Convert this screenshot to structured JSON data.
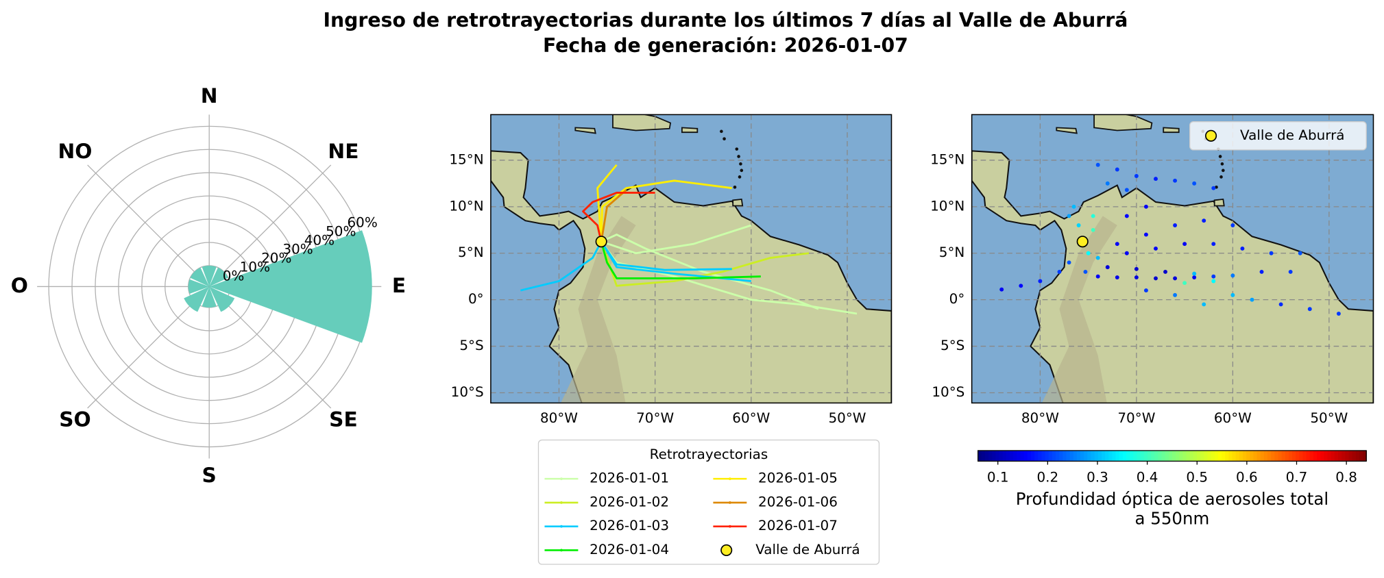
{
  "title": [
    "Ingreso de retrotrayectorias durante los últimos 7 días al Valle de Aburrá",
    "Fecha de generación: 2026-01-07"
  ],
  "chart_data": [
    {
      "type": "rose",
      "categories": [
        "N",
        "NE",
        "E",
        "SE",
        "S",
        "SO",
        "O",
        "NO"
      ],
      "values": [
        0,
        0,
        61,
        3,
        0,
        3,
        0,
        0
      ],
      "color": "#66cdbb",
      "rlim": [
        -9,
        65
      ],
      "rticks": [
        {
          "value": 0,
          "label": "0%"
        },
        {
          "value": 10,
          "label": "10%"
        },
        {
          "value": 20,
          "label": "20%"
        },
        {
          "value": 30,
          "label": "30%"
        },
        {
          "value": 40,
          "label": "40%"
        },
        {
          "value": 50,
          "label": "50%"
        },
        {
          "value": 60,
          "label": "60%"
        }
      ]
    },
    {
      "type": "trajectory_map",
      "xlim": [
        -87.1,
        -45.4
      ],
      "ylim": [
        -11.1,
        19.9
      ],
      "grid": true,
      "xticks": [
        {
          "value": -80,
          "label": "80°W"
        },
        {
          "value": -70,
          "label": "70°W"
        },
        {
          "value": -60,
          "label": "60°W"
        },
        {
          "value": -50,
          "label": "50°W"
        }
      ],
      "yticks": [
        {
          "value": 15,
          "label": "15°N"
        },
        {
          "value": 10,
          "label": "10°N"
        },
        {
          "value": 5,
          "label": "5°N"
        },
        {
          "value": 0,
          "label": "0°"
        },
        {
          "value": -5,
          "label": "5°S"
        },
        {
          "value": -10,
          "label": "10°S"
        }
      ],
      "legend_title": "Retrotrayectorias",
      "series": [
        {
          "name": "2026-01-01",
          "color": "#ccffaa",
          "tracks": [
            {
              "x": [
                -49,
                -55,
                -60,
                -68,
                -74,
                -75.6
              ],
              "y": [
                -1.5,
                -0.5,
                0,
                2.5,
                4,
                6.25
              ]
            },
            {
              "x": [
                -60,
                -66,
                -72,
                -75.6
              ],
              "y": [
                8,
                6,
                5,
                6.25
              ]
            },
            {
              "x": [
                -53,
                -58,
                -65,
                -71,
                -74,
                -75.6
              ],
              "y": [
                -1,
                1,
                3,
                5.5,
                7,
                6.25
              ]
            }
          ]
        },
        {
          "name": "2026-01-02",
          "color": "#ccee22",
          "tracks": [
            {
              "x": [
                -54,
                -58,
                -63,
                -68,
                -74,
                -75.6
              ],
              "y": [
                5,
                4.5,
                3,
                2,
                1.5,
                6.25
              ]
            }
          ]
        },
        {
          "name": "2026-01-03",
          "color": "#00ccff",
          "tracks": [
            {
              "x": [
                -60,
                -68,
                -74,
                -75.6
              ],
              "y": [
                2,
                2.8,
                3.5,
                6.25
              ]
            },
            {
              "x": [
                -84,
                -80,
                -76.5,
                -75.6
              ],
              "y": [
                1,
                2,
                4.5,
                6.25
              ]
            },
            {
              "x": [
                -62,
                -69,
                -74,
                -75.6
              ],
              "y": [
                3.3,
                3.2,
                3.8,
                6.25
              ]
            }
          ]
        },
        {
          "name": "2026-01-04",
          "color": "#00ee00",
          "tracks": [
            {
              "x": [
                -59,
                -66,
                -74,
                -75,
                -75.6
              ],
              "y": [
                2.5,
                2.3,
                2.3,
                4,
                6.25
              ]
            }
          ]
        },
        {
          "name": "2026-01-05",
          "color": "#ffee00",
          "tracks": [
            {
              "x": [
                -62,
                -68,
                -73,
                -75.5,
                -75.6
              ],
              "y": [
                12,
                12.8,
                12,
                10,
                6.25
              ]
            },
            {
              "x": [
                -74,
                -76,
                -75.6
              ],
              "y": [
                14.5,
                12,
                6.25
              ]
            }
          ]
        },
        {
          "name": "2026-01-06",
          "color": "#dd8800",
          "tracks": [
            {
              "x": [
                -73,
                -75,
                -75.6
              ],
              "y": [
                11.8,
                10,
                6.25
              ]
            }
          ]
        },
        {
          "name": "2026-01-07",
          "color": "#ff2200",
          "tracks": [
            {
              "x": [
                -70,
                -74,
                -76.5,
                -77.5,
                -76,
                -75.6
              ],
              "y": [
                11.5,
                11.5,
                10.5,
                9.5,
                8,
                6.25
              ]
            }
          ]
        }
      ],
      "marker": {
        "name": "Valle de Aburrá",
        "x": -75.6,
        "y": 6.25,
        "color": "#ffee22"
      }
    },
    {
      "type": "scatter_map",
      "xlim": [
        -87.1,
        -45.4
      ],
      "ylim": [
        -11.1,
        19.9
      ],
      "grid": true,
      "legend": "upper right",
      "xticks": [
        {
          "value": -80,
          "label": "80°W"
        },
        {
          "value": -70,
          "label": "70°W"
        },
        {
          "value": -60,
          "label": "60°W"
        },
        {
          "value": -50,
          "label": "50°W"
        }
      ],
      "yticks": [
        {
          "value": 15,
          "label": "15°N"
        },
        {
          "value": 10,
          "label": "10°N"
        },
        {
          "value": 5,
          "label": "5°N"
        },
        {
          "value": 0,
          "label": "0°"
        },
        {
          "value": -5,
          "label": "5°S"
        },
        {
          "value": -10,
          "label": "10°S"
        }
      ],
      "x": [
        -74,
        -72,
        -70,
        -68,
        -66,
        -64,
        -62,
        -73,
        -71,
        -76.5,
        -77,
        -76,
        -74.5,
        -74.5,
        -75,
        -74,
        -75.3,
        -84,
        -82,
        -80,
        -78,
        -77,
        -74,
        -72,
        -70,
        -68,
        -66,
        -64,
        -62,
        -60,
        -73,
        -70,
        -67,
        -64,
        -62,
        -65,
        -49,
        -52,
        -55,
        -58,
        -60,
        -53,
        -56,
        -59,
        -62,
        -65,
        -68,
        -71,
        -60,
        -63,
        -66,
        -69,
        -72,
        -54,
        -57,
        -69,
        -71,
        -63,
        -66,
        -69
      ],
      "y": [
        14.5,
        14,
        13.3,
        13,
        12.8,
        12.5,
        12,
        12.5,
        11.8,
        10,
        9,
        8,
        9,
        7.5,
        5,
        4.5,
        3,
        1.1,
        1.5,
        2,
        3,
        4,
        2.5,
        2.4,
        2.4,
        2.3,
        2.3,
        2.4,
        2.5,
        2.6,
        3.5,
        3.3,
        3,
        2.8,
        2,
        1.8,
        -1.5,
        -1,
        -0.5,
        0,
        0.5,
        5,
        5,
        5.5,
        6,
        6,
        5.5,
        5,
        8,
        8.5,
        8,
        7,
        6,
        3,
        3,
        10,
        9,
        -0.5,
        0.5,
        1
      ],
      "values": [
        0.22,
        0.2,
        0.2,
        0.18,
        0.2,
        0.22,
        0.2,
        0.25,
        0.22,
        0.3,
        0.28,
        0.32,
        0.38,
        0.4,
        0.35,
        0.3,
        0.22,
        0.15,
        0.16,
        0.18,
        0.2,
        0.22,
        0.15,
        0.14,
        0.13,
        0.12,
        0.13,
        0.15,
        0.2,
        0.25,
        0.13,
        0.12,
        0.12,
        0.3,
        0.35,
        0.4,
        0.2,
        0.2,
        0.19,
        0.28,
        0.3,
        0.22,
        0.2,
        0.18,
        0.18,
        0.15,
        0.15,
        0.15,
        0.2,
        0.18,
        0.18,
        0.16,
        0.15,
        0.2,
        0.18,
        0.15,
        0.16,
        0.3,
        0.25,
        0.2
      ],
      "marker": {
        "name": "Valle de Aburrá",
        "x": -75.6,
        "y": 6.25,
        "color": "#ffee22"
      },
      "colorbar": {
        "cmap": "jet",
        "label": [
          "Profundidad óptica de aerosoles total",
          "a 550nm"
        ],
        "lim": [
          0.06,
          0.84
        ],
        "ticks": [
          0.1,
          0.2,
          0.3,
          0.4,
          0.5,
          0.6,
          0.7,
          0.8
        ]
      }
    }
  ]
}
